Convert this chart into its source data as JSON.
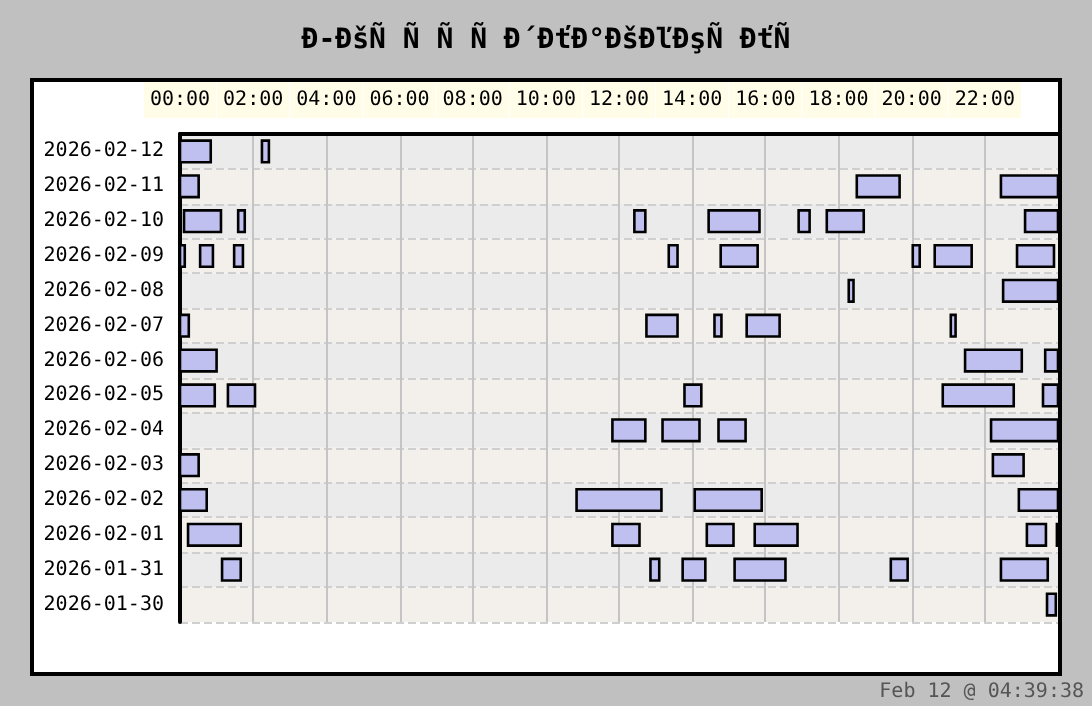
{
  "chart_data": {
    "type": "bar",
    "orientation": "horizontal",
    "title": "Ð-ÐšÑ Ñ Ñ Ñ Ð´ÐťÐ°ÐšÐľÐşÑ ÐťÑ",
    "annotations": [
      "Feb 12 @ 04:39:38"
    ],
    "categories": [
      "2026-02-12",
      "2026-02-11",
      "2026-02-10",
      "2026-02-09",
      "2026-02-08",
      "2026-02-07",
      "2026-02-06",
      "2026-02-05",
      "2026-02-04",
      "2026-02-03",
      "2026-02-02",
      "2026-02-01",
      "2026-01-31",
      "2026-01-30"
    ],
    "xlim": [
      0,
      24
    ],
    "xticks": [
      {
        "value": 0,
        "label": "00:00"
      },
      {
        "value": 2,
        "label": "02:00"
      },
      {
        "value": 4,
        "label": "04:00"
      },
      {
        "value": 6,
        "label": "06:00"
      },
      {
        "value": 8,
        "label": "08:00"
      },
      {
        "value": 10,
        "label": "10:00"
      },
      {
        "value": 12,
        "label": "12:00"
      },
      {
        "value": 14,
        "label": "14:00"
      },
      {
        "value": 16,
        "label": "16:00"
      },
      {
        "value": 18,
        "label": "18:00"
      },
      {
        "value": 20,
        "label": "20:00"
      },
      {
        "value": 22,
        "label": "22:00"
      }
    ],
    "grid": true,
    "series": [
      {
        "color": "#c0c0f0",
        "base": [
          0,
          0,
          0.11,
          0,
          18.28,
          0,
          0,
          0,
          11.82,
          0,
          0,
          0.22,
          1.15,
          23.7
        ],
        "values": [
          0.84,
          0.51,
          1.01,
          0.13,
          0.13,
          0.24,
          1.0,
          0.95,
          0.9,
          0.51,
          0.73,
          1.44,
          0.51,
          0.24
        ]
      },
      {
        "color": "#c0c0f0",
        "base": [
          2.24,
          18.5,
          1.59,
          0.55,
          22.5,
          12.75,
          21.46,
          1.31,
          13.19,
          22.22,
          10.84,
          11.82,
          12.86,
          null
        ],
        "values": [
          0.19,
          1.17,
          0.18,
          0.35,
          1.5,
          0.85,
          1.55,
          0.74,
          1.01,
          0.84,
          2.32,
          0.74,
          0.24,
          null
        ]
      },
      {
        "color": "#c0c0f0",
        "base": [
          null,
          22.44,
          12.42,
          1.48,
          null,
          14.61,
          23.65,
          13.79,
          14.72,
          null,
          14.07,
          14.4,
          13.74,
          null
        ],
        "values": [
          null,
          1.56,
          0.3,
          0.24,
          null,
          0.19,
          0.35,
          0.46,
          0.74,
          null,
          1.83,
          0.73,
          0.62,
          null
        ]
      },
      {
        "color": "#c0c0f0",
        "base": [
          null,
          null,
          14.45,
          13.36,
          null,
          15.49,
          null,
          20.85,
          22.17,
          null,
          22.93,
          15.71,
          15.16,
          null
        ],
        "values": [
          null,
          null,
          1.39,
          0.24,
          null,
          0.9,
          null,
          1.94,
          1.83,
          null,
          1.07,
          1.17,
          1.39,
          null
        ]
      },
      {
        "color": "#c0c0f0",
        "base": [
          null,
          null,
          16.91,
          14.78,
          null,
          21.07,
          null,
          23.59,
          null,
          null,
          null,
          23.15,
          19.43,
          null
        ],
        "values": [
          null,
          null,
          0.3,
          1.01,
          null,
          0.13,
          null,
          0.41,
          null,
          null,
          null,
          0.52,
          0.46,
          null
        ]
      },
      {
        "color": "#c0c0f0",
        "base": [
          null,
          null,
          17.68,
          20.03,
          null,
          null,
          null,
          null,
          null,
          null,
          null,
          23.97,
          22.44,
          null
        ],
        "values": [
          null,
          null,
          1.01,
          0.19,
          null,
          null,
          null,
          null,
          null,
          null,
          null,
          0.03,
          1.28,
          null
        ]
      },
      {
        "color": "#c0c0f0",
        "base": [
          null,
          null,
          23.1,
          20.63,
          null,
          null,
          null,
          null,
          null,
          null,
          null,
          null,
          null,
          null
        ],
        "values": [
          null,
          null,
          0.9,
          1.01,
          null,
          null,
          null,
          null,
          null,
          null,
          null,
          null,
          null,
          null
        ]
      },
      {
        "color": "#c0c0f0",
        "base": [
          null,
          null,
          null,
          22.88,
          null,
          null,
          null,
          null,
          null,
          null,
          null,
          null,
          null,
          null
        ],
        "values": [
          null,
          null,
          null,
          1.01,
          null,
          null,
          null,
          null,
          null,
          null,
          null,
          null,
          null,
          null
        ]
      }
    ]
  }
}
